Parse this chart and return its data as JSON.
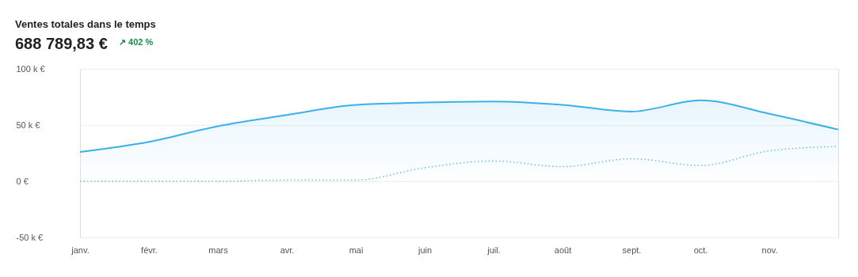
{
  "chart_data": {
    "type": "line",
    "title": "Ventes totales dans le temps",
    "subtitle": "688 789,83 €",
    "annotations": [
      "↗ 402 %"
    ],
    "categories": [
      "janv.",
      "févr.",
      "mars",
      "avr.",
      "mai",
      "juin",
      "juil.",
      "août",
      "sept.",
      "oct.",
      "nov.",
      null
    ],
    "series": [
      {
        "type": "area",
        "color": "#3bb0ea",
        "line_style": "solid",
        "values": [
          26000,
          35000,
          49000,
          59000,
          68000,
          70000,
          71000,
          68000,
          62000,
          72000,
          60000,
          46000
        ]
      },
      {
        "color": "#6cbde6",
        "line_style": "dotted",
        "values": [
          0,
          0,
          0,
          1000,
          1000,
          12000,
          18000,
          13000,
          20000,
          14000,
          27000,
          31000
        ]
      }
    ],
    "ylim": [
      -50000,
      100000
    ],
    "yticks": [
      {
        "value": -50000,
        "label": "-50 k €"
      },
      {
        "value": 0,
        "label": "0 €"
      },
      {
        "value": 50000,
        "label": "50 k €"
      },
      {
        "value": 100000,
        "label": "100 k €"
      }
    ],
    "grid": "y",
    "marker": "none"
  }
}
